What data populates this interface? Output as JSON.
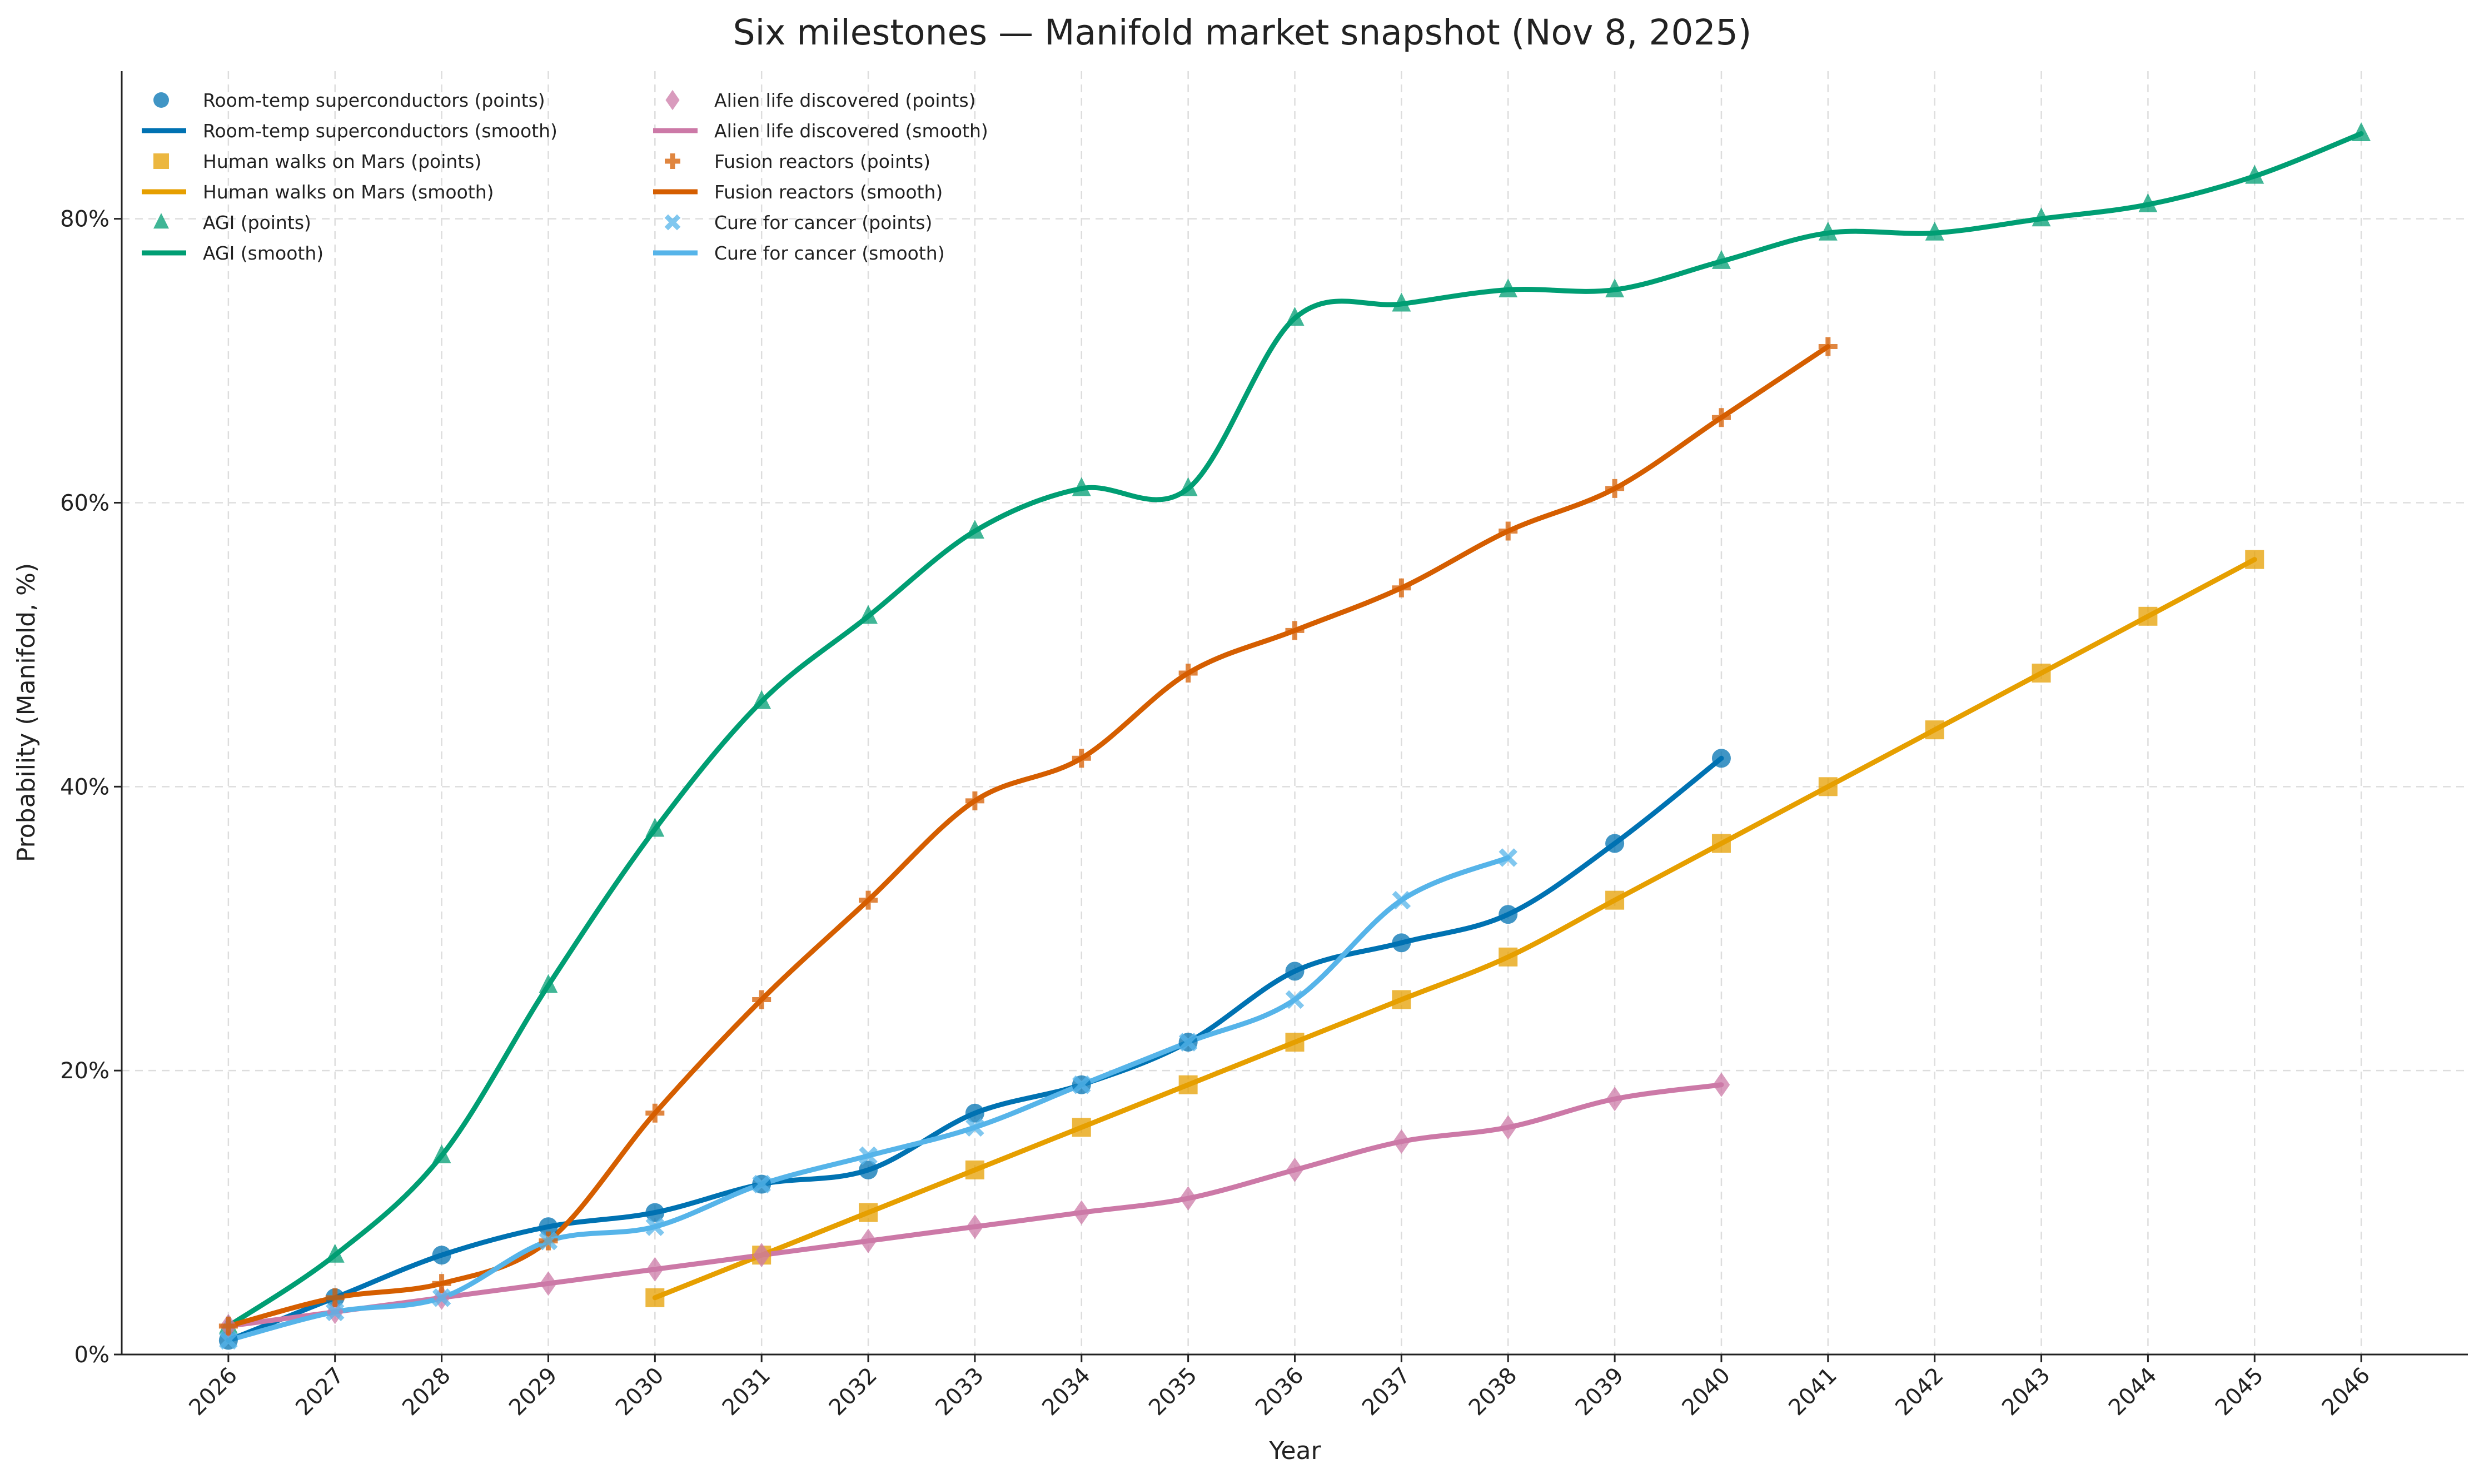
{
  "chart_data": {
    "type": "line",
    "title": "Six milestones — Manifold market snapshot (Nov 8, 2025)",
    "xlabel": "Year",
    "ylabel": "Probability (Manifold, %)",
    "xlim": [
      2025,
      2047
    ],
    "ylim": [
      0,
      90.4
    ],
    "grid": true,
    "legend_placement": "top-left",
    "x_ticks": [
      "2026",
      "2027",
      "2028",
      "2029",
      "2030",
      "2031",
      "2032",
      "2033",
      "2034",
      "2035",
      "2036",
      "2037",
      "2038",
      "2039",
      "2040",
      "2041",
      "2042",
      "2043",
      "2044",
      "2045",
      "2046"
    ],
    "y_ticks": [
      {
        "value": 0,
        "label": "0%"
      },
      {
        "value": 20,
        "label": "20%"
      },
      {
        "value": 40,
        "label": "40%"
      },
      {
        "value": 60,
        "label": "60%"
      },
      {
        "value": 80,
        "label": "80%"
      }
    ],
    "series": [
      {
        "name": "Room-temp superconductors",
        "color": "#0072B2",
        "marker": "circle",
        "points_label": "Room-temp superconductors (points)",
        "smooth_label": "Room-temp superconductors (smooth)",
        "x": [
          2026,
          2027,
          2028,
          2029,
          2030,
          2031,
          2032,
          2033,
          2034,
          2035,
          2036,
          2037,
          2038,
          2039,
          2040
        ],
        "values": [
          1,
          4,
          7,
          9,
          10,
          12,
          13,
          17,
          19,
          22,
          27,
          29,
          31,
          36,
          42
        ]
      },
      {
        "name": "Human walks on Mars",
        "color": "#E69F00",
        "marker": "square",
        "points_label": "Human walks on Mars (points)",
        "smooth_label": "Human walks on Mars (smooth)",
        "x": [
          2030,
          2031,
          2032,
          2033,
          2034,
          2035,
          2036,
          2037,
          2038,
          2039,
          2040,
          2041,
          2042,
          2043,
          2044,
          2045
        ],
        "values": [
          4,
          7,
          10,
          13,
          16,
          19,
          22,
          25,
          28,
          32,
          36,
          40,
          44,
          48,
          52,
          56
        ]
      },
      {
        "name": "AGI",
        "color": "#009E73",
        "marker": "triangle",
        "points_label": "AGI (points)",
        "smooth_label": "AGI (smooth)",
        "x": [
          2026,
          2027,
          2028,
          2029,
          2030,
          2031,
          2032,
          2033,
          2034,
          2035,
          2036,
          2037,
          2038,
          2039,
          2040,
          2041,
          2042,
          2043,
          2044,
          2045,
          2046
        ],
        "values": [
          2,
          7,
          14,
          26,
          37,
          46,
          52,
          58,
          61,
          61,
          73,
          74,
          75,
          75,
          77,
          79,
          79,
          80,
          81,
          83,
          86
        ]
      },
      {
        "name": "Alien life discovered",
        "color": "#CC79A7",
        "marker": "diamond",
        "points_label": "Alien life discovered (points)",
        "smooth_label": "Alien life discovered (smooth)",
        "x": [
          2026,
          2027,
          2028,
          2029,
          2030,
          2031,
          2032,
          2033,
          2034,
          2035,
          2036,
          2037,
          2038,
          2039,
          2040
        ],
        "values": [
          2,
          3,
          4,
          5,
          6,
          7,
          8,
          9,
          10,
          11,
          13,
          15,
          16,
          18,
          19
        ]
      },
      {
        "name": "Fusion reactors",
        "color": "#D55E00",
        "marker": "plus",
        "points_label": "Fusion reactors (points)",
        "smooth_label": "Fusion reactors (smooth)",
        "x": [
          2026,
          2027,
          2028,
          2029,
          2030,
          2031,
          2032,
          2033,
          2034,
          2035,
          2036,
          2037,
          2038,
          2039,
          2040,
          2041
        ],
        "values": [
          2,
          4,
          5,
          8,
          17,
          25,
          32,
          39,
          42,
          48,
          51,
          54,
          58,
          61,
          66,
          71
        ]
      },
      {
        "name": "Cure for cancer",
        "color": "#56B4E9",
        "marker": "x",
        "points_label": "Cure for cancer (points)",
        "smooth_label": "Cure for cancer (smooth)",
        "x": [
          2026,
          2027,
          2028,
          2029,
          2030,
          2031,
          2032,
          2033,
          2034,
          2035,
          2036,
          2037,
          2038
        ],
        "values": [
          1,
          3,
          4,
          8,
          9,
          12,
          14,
          16,
          19,
          22,
          25,
          32,
          35
        ]
      }
    ]
  }
}
